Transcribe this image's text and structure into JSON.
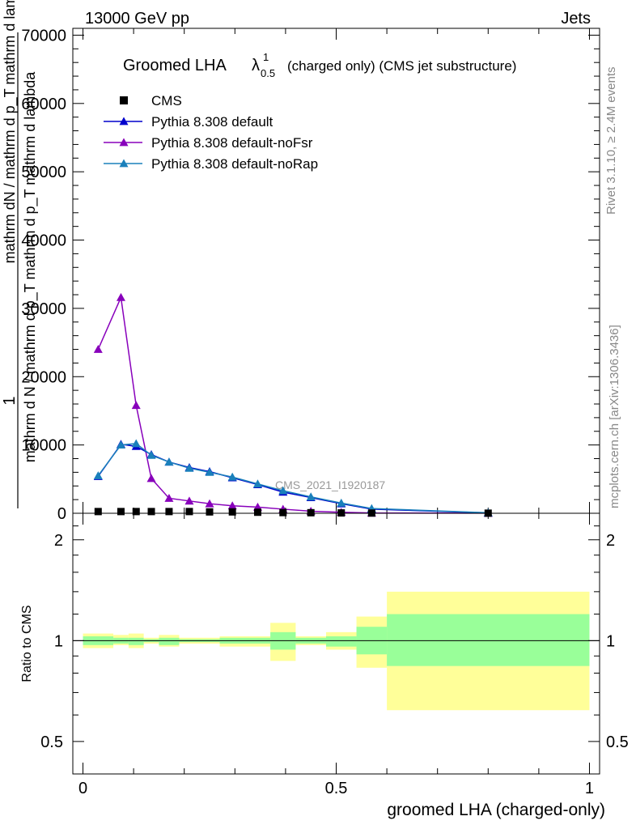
{
  "header": {
    "energy": "13000 GeV pp",
    "process": "Jets"
  },
  "title_main": "Groomed LHA",
  "title_lambda": "λ",
  "title_sup": "1",
  "title_sub": "0.5",
  "title_rest": "(charged only) (CMS jet substructure)",
  "side_text": {
    "rivet": "Rivet 3.1.10, ≥ 2.4M events",
    "mcplots": "mcplots.cern.ch [arXiv:1306.3436]"
  },
  "watermark": "CMS_2021_I1920187",
  "ylabel_main": {
    "numerator_line1": "1",
    "numerator_line2": "mathrm d N / mathrm d p_T mathrm d p_T mathrm d lambda",
    "denominator": "mathrm dN / mathrm d p_T mathrm d lambda"
  },
  "ylabel_ratio": "Ratio to CMS",
  "xlabel": "groomed LHA (charged-only)",
  "colors": {
    "cms": "#000000",
    "default": "#0000cc",
    "noFsr": "#8800bb",
    "noRap": "#1a80bb",
    "band_inner": "#99ff99",
    "band_outer": "#ffff99"
  },
  "chart_data": [
    {
      "type": "line",
      "x_range": [
        0,
        1
      ],
      "ylim": [
        0,
        71000
      ],
      "yticks": [
        0,
        10000,
        20000,
        30000,
        40000,
        50000,
        60000,
        70000
      ],
      "ytick_labels": [
        "0",
        "10000",
        "20000",
        "30000",
        "40000",
        "50000",
        "60000",
        "70000"
      ],
      "legend_position": "top-left",
      "x": [
        0.03,
        0.075,
        0.105,
        0.135,
        0.17,
        0.21,
        0.25,
        0.295,
        0.345,
        0.395,
        0.45,
        0.51,
        0.57,
        0.8
      ],
      "series": [
        {
          "name": "CMS",
          "key": "cms",
          "marker": "square",
          "values": [
            250,
            250,
            250,
            250,
            250,
            250,
            200,
            200,
            150,
            100,
            80,
            50,
            30,
            15
          ]
        },
        {
          "name": "Pythia 8.308 default",
          "key": "default",
          "marker": "triangle",
          "values": [
            5400,
            10100,
            9800,
            8600,
            7500,
            6700,
            6100,
            5200,
            4200,
            3100,
            2300,
            1400,
            600,
            60
          ]
        },
        {
          "name": "Pythia 8.308 default-noFsr",
          "key": "noFsr",
          "marker": "triangle",
          "values": [
            24000,
            31600,
            15800,
            5100,
            2200,
            1800,
            1400,
            1100,
            900,
            600,
            300,
            150,
            40,
            10
          ]
        },
        {
          "name": "Pythia 8.308 default-noRap",
          "key": "noRap",
          "marker": "triangle",
          "values": [
            5500,
            10000,
            10200,
            8500,
            7500,
            6600,
            6000,
            5300,
            4300,
            3300,
            2400,
            1500,
            700,
            70
          ]
        }
      ]
    },
    {
      "type": "area",
      "xlim": [
        -0.02,
        1.02
      ],
      "ylim_log": [
        0.4,
        2.4
      ],
      "yticks": [
        0.5,
        1,
        2
      ],
      "ytick_labels": [
        "0.5",
        "1",
        "2"
      ],
      "xticks": [
        0,
        0.5,
        1
      ],
      "xtick_labels": [
        "0",
        "0.5",
        "1"
      ],
      "reference_line": 1,
      "bins": [
        {
          "x": [
            0.0,
            0.06
          ],
          "inner": [
            0.97,
            1.03
          ],
          "outer": [
            0.95,
            1.05
          ]
        },
        {
          "x": [
            0.06,
            0.09
          ],
          "inner": [
            0.98,
            1.02
          ],
          "outer": [
            0.97,
            1.04
          ]
        },
        {
          "x": [
            0.09,
            0.12
          ],
          "inner": [
            0.97,
            1.02
          ],
          "outer": [
            0.95,
            1.05
          ]
        },
        {
          "x": [
            0.12,
            0.15
          ],
          "inner": [
            0.99,
            1.01
          ],
          "outer": [
            0.98,
            1.02
          ]
        },
        {
          "x": [
            0.15,
            0.19
          ],
          "inner": [
            0.97,
            1.02
          ],
          "outer": [
            0.96,
            1.04
          ]
        },
        {
          "x": [
            0.19,
            0.27
          ],
          "inner": [
            0.99,
            1.01
          ],
          "outer": [
            0.98,
            1.02
          ]
        },
        {
          "x": [
            0.27,
            0.37
          ],
          "inner": [
            0.98,
            1.02
          ],
          "outer": [
            0.96,
            1.03
          ]
        },
        {
          "x": [
            0.37,
            0.42
          ],
          "inner": [
            0.94,
            1.06
          ],
          "outer": [
            0.87,
            1.13
          ]
        },
        {
          "x": [
            0.42,
            0.48
          ],
          "inner": [
            0.98,
            1.02
          ],
          "outer": [
            0.97,
            1.03
          ]
        },
        {
          "x": [
            0.48,
            0.54
          ],
          "inner": [
            0.96,
            1.03
          ],
          "outer": [
            0.94,
            1.06
          ]
        },
        {
          "x": [
            0.54,
            0.6
          ],
          "inner": [
            0.91,
            1.1
          ],
          "outer": [
            0.83,
            1.18
          ]
        },
        {
          "x": [
            0.6,
            1.0
          ],
          "inner": [
            0.84,
            1.2
          ],
          "outer": [
            0.62,
            1.4
          ]
        }
      ]
    }
  ]
}
